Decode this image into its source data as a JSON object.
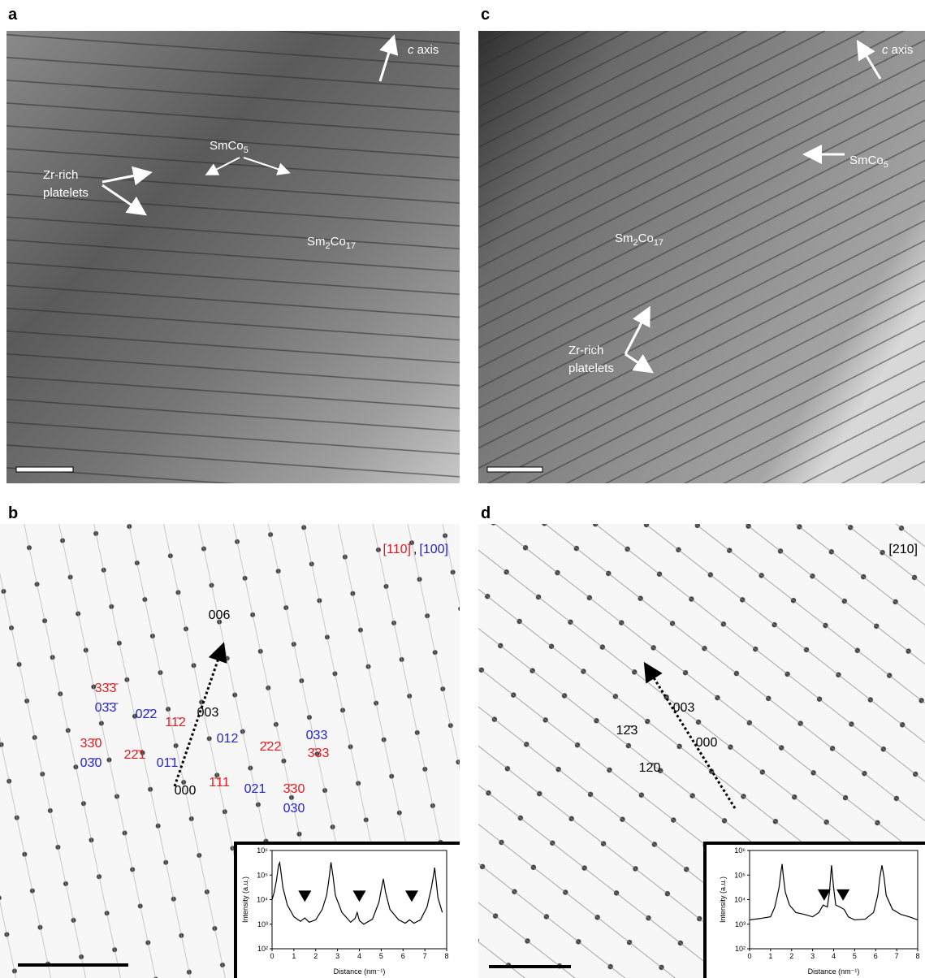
{
  "panels": {
    "a": {
      "label": "a",
      "c_axis": [
        "c",
        "axis"
      ],
      "smco5": [
        "SmCo",
        "5"
      ],
      "zr_rich": [
        "Zr-rich",
        "platelets"
      ],
      "sm2co17": [
        "Sm",
        "2",
        "Co",
        "17"
      ]
    },
    "c": {
      "label": "c",
      "c_axis": [
        "c",
        "axis"
      ],
      "smco5": [
        "SmCo",
        "5"
      ],
      "zr_rich": [
        "Zr-rich",
        "platelets"
      ],
      "sm2co17": [
        "Sm",
        "2",
        "Co",
        "17"
      ]
    },
    "b": {
      "label": "b",
      "zone": [
        {
          "text": "[110]",
          "color": "#e41a1c"
        },
        {
          "text": ",",
          "color": "#000000"
        },
        {
          "text": "[100]",
          "color": "#1f1fd6"
        }
      ],
      "indices": [
        {
          "text": "33̄3̄",
          "color": "#e41a1c"
        },
        {
          "text": "03̄3̄",
          "color": "#1f1fd6"
        },
        {
          "text": "02̄2",
          "color": "#1f1fd6"
        },
        {
          "text": "11̄2",
          "color": "#e41a1c"
        },
        {
          "text": "003",
          "color": "#000000"
        },
        {
          "text": "33̄0",
          "color": "#e41a1c"
        },
        {
          "text": "03̄0",
          "color": "#1f1fd6"
        },
        {
          "text": "22̄1",
          "color": "#e41a1c"
        },
        {
          "text": "01̄1",
          "color": "#1f1fd6"
        },
        {
          "text": "012",
          "color": "#1f1fd6"
        },
        {
          "text": "2̄22",
          "color": "#e41a1c"
        },
        {
          "text": "033",
          "color": "#1f1fd6"
        },
        {
          "text": "3̄33",
          "color": "#e41a1c"
        },
        {
          "text": "1̄11",
          "color": "#e41a1c"
        },
        {
          "text": "021",
          "color": "#1f1fd6"
        },
        {
          "text": "3̄30",
          "color": "#e41a1c"
        },
        {
          "text": "030",
          "color": "#1f1fd6"
        },
        {
          "text": "000",
          "color": "#000000"
        },
        {
          "text": "006",
          "color": "#000000"
        }
      ]
    },
    "d": {
      "label": "d",
      "zone": [
        {
          "text": "[210]",
          "color": "#000000"
        }
      ],
      "indices": [
        {
          "text": "003",
          "color": "#000000"
        },
        {
          "text": "12̄3",
          "color": "#000000"
        },
        {
          "text": "000",
          "color": "#000000"
        },
        {
          "text": "12̄0",
          "color": "#000000"
        }
      ]
    }
  },
  "chart_data": [
    {
      "type": "line",
      "xlabel": "Distance (nm⁻¹)",
      "ylabel": "Intensity (a.u.)",
      "log_y": true,
      "x": [
        0,
        0.1,
        0.2,
        0.3,
        0.35,
        0.4,
        0.5,
        0.7,
        1.0,
        1.3,
        1.5,
        1.7,
        2.0,
        2.3,
        2.5,
        2.6,
        2.7,
        2.8,
        2.9,
        3.2,
        3.6,
        3.8,
        3.9,
        4.0,
        4.2,
        4.6,
        4.9,
        5.0,
        5.1,
        5.2,
        5.4,
        5.8,
        6.1,
        6.3,
        6.5,
        6.8,
        7.1,
        7.3,
        7.4,
        7.45,
        7.5,
        7.6,
        7.8
      ],
      "series": [
        {
          "color": "#000000",
          "values": [
            10000,
            20000,
            60000,
            250000,
            320000,
            150000,
            30000,
            6000,
            2000,
            1300,
            1800,
            1200,
            1500,
            4000,
            15000,
            60000,
            330000,
            80000,
            15000,
            3000,
            1200,
            1700,
            3000,
            1400,
            1000,
            1600,
            8000,
            25000,
            70000,
            20000,
            4000,
            1500,
            1100,
            1500,
            1100,
            1500,
            5000,
            30000,
            100000,
            200000,
            80000,
            12000,
            3000
          ]
        }
      ],
      "markers": {
        "x": [
          1.5,
          4.0,
          6.4
        ],
        "y": [
          8000,
          8000,
          8000
        ]
      },
      "xlim": [
        0,
        8
      ],
      "ylim": [
        100,
        1000000
      ],
      "xticks": [
        0,
        1,
        2,
        3,
        4,
        5,
        6,
        7,
        8
      ],
      "yticks": [
        {
          "value": 100,
          "label": "10²"
        },
        {
          "value": 1000,
          "label": "10³"
        },
        {
          "value": 10000,
          "label": "10⁴"
        },
        {
          "value": 100000,
          "label": "10⁵"
        },
        {
          "value": 1000000,
          "label": "10⁶"
        }
      ]
    },
    {
      "type": "line",
      "xlabel": "Distance (nm⁻¹)",
      "ylabel": "Intensity (a.u.)",
      "log_y": true,
      "x": [
        0,
        0.5,
        1.0,
        1.2,
        1.4,
        1.5,
        1.55,
        1.6,
        1.7,
        1.9,
        2.2,
        2.6,
        3.0,
        3.3,
        3.5,
        3.7,
        3.8,
        3.9,
        4.0,
        4.1,
        4.3,
        4.5,
        4.7,
        5.0,
        5.5,
        5.9,
        6.1,
        6.2,
        6.3,
        6.4,
        6.5,
        6.8,
        7.2,
        7.6,
        8.0
      ],
      "series": [
        {
          "color": "#000000",
          "values": [
            1500,
            1700,
            2000,
            5000,
            30000,
            150000,
            280000,
            100000,
            20000,
            6000,
            3000,
            2500,
            2000,
            3000,
            6000,
            5000,
            20000,
            250000,
            30000,
            6000,
            5000,
            4000,
            2000,
            1500,
            1600,
            3000,
            15000,
            80000,
            250000,
            80000,
            15000,
            4000,
            2500,
            2000,
            1500
          ]
        }
      ],
      "markers": {
        "x": [
          3.55,
          4.45
        ],
        "y": [
          9000,
          9000
        ]
      },
      "xlim": [
        0,
        8
      ],
      "ylim": [
        100,
        1000000
      ],
      "xticks": [
        0,
        1,
        2,
        3,
        4,
        5,
        6,
        7,
        8
      ],
      "yticks": [
        {
          "value": 100,
          "label": "10²"
        },
        {
          "value": 1000,
          "label": "10³"
        },
        {
          "value": 10000,
          "label": "10⁴"
        },
        {
          "value": 100000,
          "label": "10⁵"
        },
        {
          "value": 1000000,
          "label": "10⁶"
        }
      ]
    }
  ]
}
